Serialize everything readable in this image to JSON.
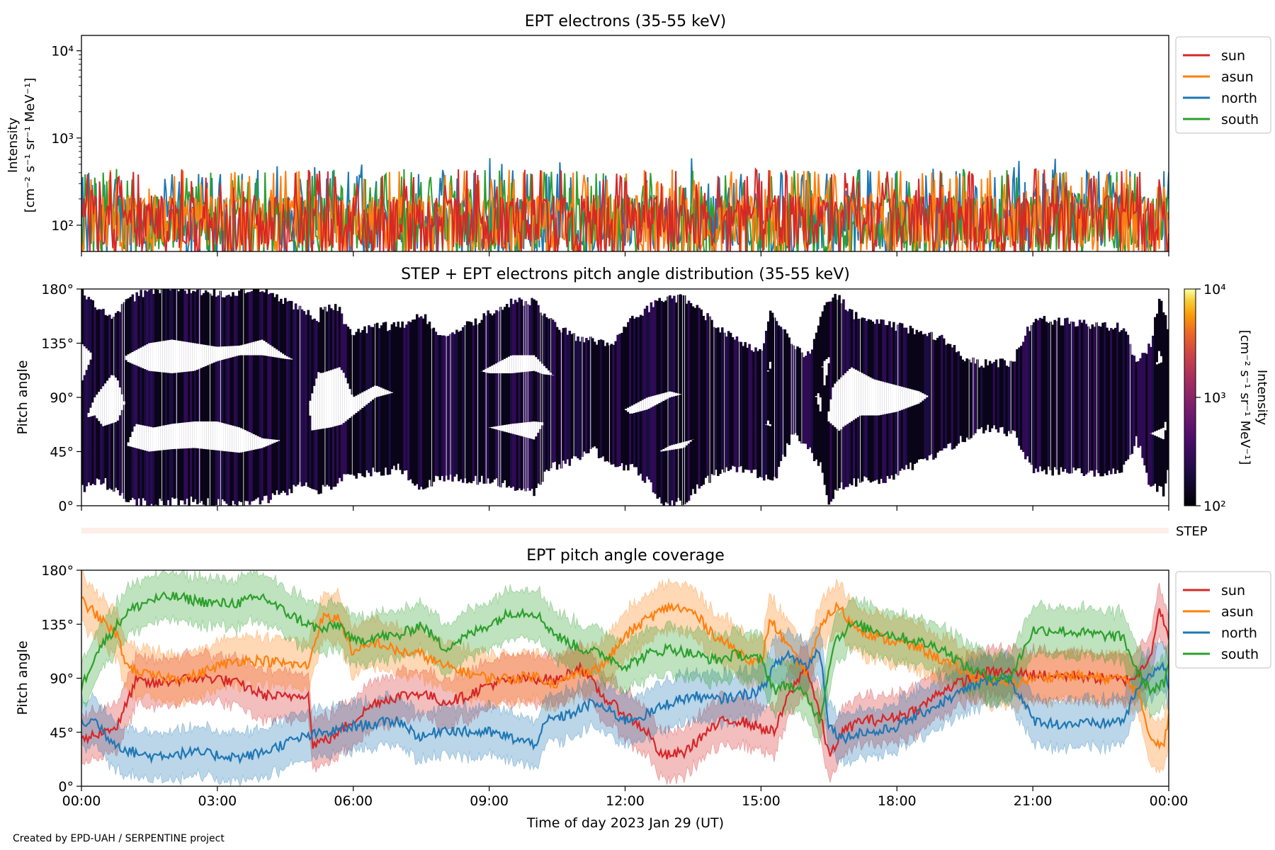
{
  "footer": {
    "credit": "Created by EPD-UAH / SERPENTINE project"
  },
  "chart_data": [
    {
      "type": "line",
      "title": "EPT electrons (35-55 keV)",
      "ylabel_line1": "Intensity",
      "ylabel_line2": "[cm⁻² s⁻¹ sr⁻¹ MeV⁻¹]",
      "yscale": "log",
      "ylim": [
        50,
        15000
      ],
      "yticks": [
        {
          "value": 100,
          "label": "10²"
        },
        {
          "value": 1000,
          "label": "10³"
        },
        {
          "value": 10000,
          "label": "10⁴"
        }
      ],
      "xlim_hours": [
        0,
        24
      ],
      "legend_position": "outside-right",
      "series": [
        {
          "name": "sun",
          "color": "#d62728"
        },
        {
          "name": "asun",
          "color": "#ff7f0e"
        },
        {
          "name": "north",
          "color": "#1f77b4"
        },
        {
          "name": "south",
          "color": "#2ca02c"
        }
      ],
      "note_noise_level": "values fluctuate between ~50 and ~500 throughout the day"
    },
    {
      "type": "heatmap",
      "title": "STEP + EPT electrons pitch angle distribution (35-55 keV)",
      "ylabel": "Pitch angle",
      "ylim": [
        0,
        180
      ],
      "yticks": [
        {
          "value": 0,
          "label": "0°"
        },
        {
          "value": 45,
          "label": "45°"
        },
        {
          "value": 90,
          "label": "90°"
        },
        {
          "value": 135,
          "label": "135°"
        },
        {
          "value": 180,
          "label": "180°"
        }
      ],
      "colorbar": {
        "label_line1": "Intensity",
        "label_line2": "[cm⁻² s⁻¹ sr⁻¹ MeV⁻¹]",
        "scale": "log",
        "range": [
          100,
          10000
        ],
        "ticks": [
          {
            "value": 100,
            "label": "10²"
          },
          {
            "value": 1000,
            "label": "10³"
          },
          {
            "value": 10000,
            "label": "10⁴"
          }
        ],
        "colormap": "inferno"
      }
    },
    {
      "type": "bar",
      "label": "STEP",
      "color": "#fdeee6"
    },
    {
      "type": "area",
      "title": "EPT pitch angle coverage",
      "ylabel": "Pitch angle",
      "xlabel": "Time of day 2023 Jan 29 (UT)",
      "ylim": [
        0,
        180
      ],
      "yticks": [
        {
          "value": 0,
          "label": "0°"
        },
        {
          "value": 45,
          "label": "45°"
        },
        {
          "value": 90,
          "label": "90°"
        },
        {
          "value": 135,
          "label": "135°"
        },
        {
          "value": 180,
          "label": "180°"
        }
      ],
      "xticks": [
        {
          "value": 0,
          "label": "00:00"
        },
        {
          "value": 3,
          "label": "03:00"
        },
        {
          "value": 6,
          "label": "06:00"
        },
        {
          "value": 9,
          "label": "09:00"
        },
        {
          "value": 12,
          "label": "12:00"
        },
        {
          "value": 15,
          "label": "15:00"
        },
        {
          "value": 18,
          "label": "18:00"
        },
        {
          "value": 21,
          "label": "21:00"
        },
        {
          "value": 24,
          "label": "00:00"
        }
      ],
      "legend_position": "outside-right",
      "band_halfwidth_deg": 20,
      "series": [
        {
          "name": "sun",
          "color": "#d62728",
          "points": [
            [
              0,
              38
            ],
            [
              0.4,
              45
            ],
            [
              0.8,
              50
            ],
            [
              1.2,
              88
            ],
            [
              1.6,
              85
            ],
            [
              2,
              88
            ],
            [
              2.5,
              90
            ],
            [
              3,
              90
            ],
            [
              3.5,
              85
            ],
            [
              4,
              76
            ],
            [
              4.5,
              74
            ],
            [
              5,
              78
            ],
            [
              5.1,
              35
            ],
            [
              5.5,
              40
            ],
            [
              6,
              55
            ],
            [
              6.5,
              70
            ],
            [
              7,
              75
            ],
            [
              7.5,
              78
            ],
            [
              8,
              70
            ],
            [
              8.5,
              75
            ],
            [
              9,
              85
            ],
            [
              9.5,
              88
            ],
            [
              10,
              90
            ],
            [
              10.5,
              88
            ],
            [
              11,
              100
            ],
            [
              11.5,
              75
            ],
            [
              12,
              60
            ],
            [
              12.5,
              45
            ],
            [
              12.8,
              25
            ],
            [
              13.3,
              28
            ],
            [
              13.8,
              45
            ],
            [
              14.2,
              55
            ],
            [
              14.5,
              55
            ],
            [
              14.9,
              50
            ],
            [
              15.3,
              45
            ],
            [
              15.6,
              75
            ],
            [
              16,
              100
            ],
            [
              16.3,
              60
            ],
            [
              16.5,
              25
            ],
            [
              16.8,
              45
            ],
            [
              17.2,
              55
            ],
            [
              17.6,
              55
            ],
            [
              18,
              58
            ],
            [
              18.5,
              65
            ],
            [
              19,
              80
            ],
            [
              19.5,
              88
            ],
            [
              20,
              95
            ],
            [
              20.5,
              95
            ],
            [
              21,
              93
            ],
            [
              21.5,
              92
            ],
            [
              22,
              92
            ],
            [
              22.5,
              90
            ],
            [
              23,
              88
            ],
            [
              23.3,
              92
            ],
            [
              23.6,
              110
            ],
            [
              23.8,
              150
            ],
            [
              24,
              120
            ]
          ]
        },
        {
          "name": "asun",
          "color": "#ff7f0e",
          "points": [
            [
              0,
              155
            ],
            [
              0.4,
              140
            ],
            [
              0.8,
              125
            ],
            [
              1,
              100
            ],
            [
              1.5,
              92
            ],
            [
              2,
              90
            ],
            [
              2.5,
              92
            ],
            [
              3,
              100
            ],
            [
              3.5,
              105
            ],
            [
              4,
              105
            ],
            [
              4.5,
              102
            ],
            [
              5,
              100
            ],
            [
              5.3,
              140
            ],
            [
              5.7,
              140
            ],
            [
              6,
              110
            ],
            [
              6.5,
              120
            ],
            [
              7,
              112
            ],
            [
              7.5,
              110
            ],
            [
              8,
              100
            ],
            [
              8.5,
              95
            ],
            [
              9,
              90
            ],
            [
              9.5,
              90
            ],
            [
              10,
              92
            ],
            [
              10.5,
              85
            ],
            [
              11,
              95
            ],
            [
              11.5,
              100
            ],
            [
              12,
              125
            ],
            [
              12.5,
              140
            ],
            [
              13,
              150
            ],
            [
              13.5,
              145
            ],
            [
              14,
              125
            ],
            [
              14.5,
              112
            ],
            [
              15,
              100
            ],
            [
              15.2,
              140
            ],
            [
              15.6,
              115
            ],
            [
              16,
              95
            ],
            [
              16.4,
              140
            ],
            [
              16.7,
              150
            ],
            [
              17,
              135
            ],
            [
              17.5,
              125
            ],
            [
              18,
              120
            ],
            [
              18.5,
              115
            ],
            [
              19,
              105
            ],
            [
              19.5,
              95
            ],
            [
              20,
              88
            ],
            [
              20.5,
              85
            ],
            [
              21,
              90
            ],
            [
              21.5,
              92
            ],
            [
              22,
              92
            ],
            [
              22.5,
              90
            ],
            [
              23,
              90
            ],
            [
              23.3,
              80
            ],
            [
              23.6,
              40
            ],
            [
              23.9,
              35
            ],
            [
              24,
              60
            ]
          ]
        },
        {
          "name": "north",
          "color": "#1f77b4",
          "points": [
            [
              0,
              52
            ],
            [
              0.3,
              55
            ],
            [
              0.6,
              40
            ],
            [
              1,
              30
            ],
            [
              1.5,
              25
            ],
            [
              2,
              27
            ],
            [
              2.5,
              28
            ],
            [
              3,
              26
            ],
            [
              3.5,
              24
            ],
            [
              4,
              28
            ],
            [
              4.5,
              36
            ],
            [
              5,
              42
            ],
            [
              5.5,
              45
            ],
            [
              6,
              50
            ],
            [
              6.5,
              52
            ],
            [
              7,
              55
            ],
            [
              7.5,
              40
            ],
            [
              8,
              48
            ],
            [
              8.5,
              45
            ],
            [
              9,
              45
            ],
            [
              9.5,
              40
            ],
            [
              10,
              35
            ],
            [
              10.3,
              55
            ],
            [
              10.8,
              60
            ],
            [
              11.3,
              70
            ],
            [
              12,
              55
            ],
            [
              12.5,
              60
            ],
            [
              13,
              70
            ],
            [
              13.5,
              75
            ],
            [
              14,
              72
            ],
            [
              14.5,
              75
            ],
            [
              15,
              80
            ],
            [
              15.3,
              100
            ],
            [
              15.6,
              110
            ],
            [
              16,
              100
            ],
            [
              16.3,
              115
            ],
            [
              16.5,
              50
            ],
            [
              16.8,
              40
            ],
            [
              17.2,
              45
            ],
            [
              17.6,
              45
            ],
            [
              18,
              50
            ],
            [
              18.5,
              60
            ],
            [
              19,
              70
            ],
            [
              19.5,
              80
            ],
            [
              20,
              88
            ],
            [
              20.5,
              90
            ],
            [
              21,
              55
            ],
            [
              21.5,
              52
            ],
            [
              22,
              52
            ],
            [
              22.5,
              52
            ],
            [
              23,
              55
            ],
            [
              23.3,
              80
            ],
            [
              23.6,
              95
            ],
            [
              23.9,
              100
            ],
            [
              24,
              80
            ]
          ]
        },
        {
          "name": "south",
          "color": "#2ca02c",
          "points": [
            [
              0,
              82
            ],
            [
              0.3,
              110
            ],
            [
              0.6,
              125
            ],
            [
              1,
              145
            ],
            [
              1.5,
              155
            ],
            [
              2,
              158
            ],
            [
              2.5,
              155
            ],
            [
              3,
              152
            ],
            [
              3.5,
              153
            ],
            [
              4,
              158
            ],
            [
              4.5,
              145
            ],
            [
              5,
              135
            ],
            [
              5.3,
              130
            ],
            [
              5.7,
              135
            ],
            [
              6,
              120
            ],
            [
              6.5,
              125
            ],
            [
              7,
              125
            ],
            [
              7.5,
              135
            ],
            [
              8,
              115
            ],
            [
              8.5,
              125
            ],
            [
              9,
              135
            ],
            [
              9.5,
              145
            ],
            [
              10,
              145
            ],
            [
              10.5,
              125
            ],
            [
              11,
              115
            ],
            [
              11.5,
              110
            ],
            [
              12,
              100
            ],
            [
              12.5,
              110
            ],
            [
              13,
              115
            ],
            [
              13.5,
              110
            ],
            [
              14,
              105
            ],
            [
              14.5,
              110
            ],
            [
              15,
              105
            ],
            [
              15.3,
              80
            ],
            [
              15.6,
              85
            ],
            [
              16,
              75
            ],
            [
              16.3,
              55
            ],
            [
              16.6,
              120
            ],
            [
              17,
              135
            ],
            [
              17.5,
              130
            ],
            [
              18,
              125
            ],
            [
              18.5,
              120
            ],
            [
              19,
              115
            ],
            [
              19.5,
              100
            ],
            [
              20,
              92
            ],
            [
              20.5,
              90
            ],
            [
              21,
              130
            ],
            [
              21.5,
              130
            ],
            [
              22,
              128
            ],
            [
              22.5,
              126
            ],
            [
              23,
              124
            ],
            [
              23.3,
              95
            ],
            [
              23.6,
              80
            ],
            [
              23.9,
              85
            ],
            [
              24,
              100
            ]
          ]
        }
      ]
    }
  ]
}
